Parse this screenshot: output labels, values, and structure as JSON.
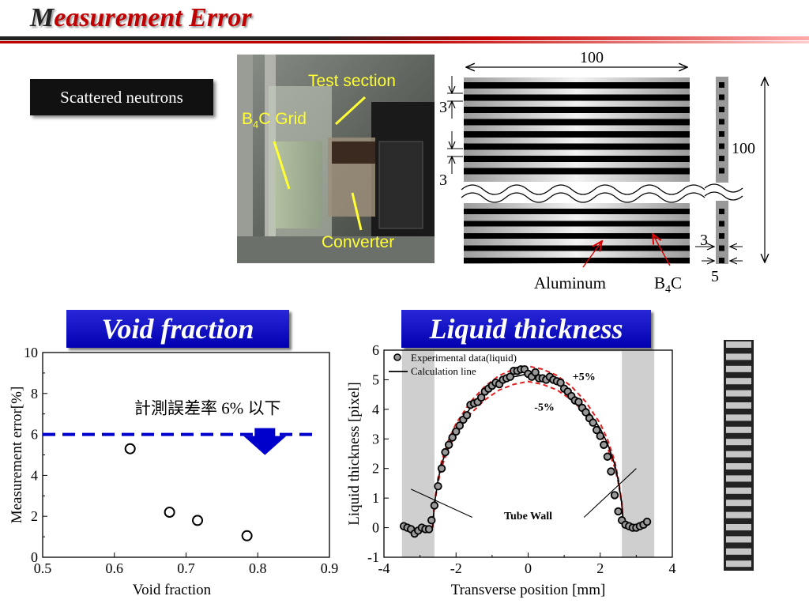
{
  "slide": {
    "title_first": "M",
    "title_rest": "easurement Error",
    "badge": "Scattered neutrons",
    "void_header": "Void fraction",
    "liquid_header": "Liquid thickness"
  },
  "photo": {
    "test_section": "Test section",
    "b4c_grid_b": "B",
    "b4c_grid_sub": "4",
    "b4c_grid_rest": "C Grid",
    "converter": "Converter"
  },
  "grid_diagram": {
    "top_width": "100",
    "pitch_1": "3",
    "pitch_2": "3",
    "height": "100",
    "side_3": "3",
    "side_5": "5",
    "aluminum": "Aluminum",
    "b4c_b": "B",
    "b4c_sub": "4",
    "b4c_c": "C"
  },
  "chart_data": [
    {
      "type": "scatter",
      "title": "Void fraction",
      "xlabel": "Void fraction",
      "ylabel": "Measurement error[%]",
      "xlim": [
        0.5,
        0.9
      ],
      "ylim": [
        0,
        10
      ],
      "xticks": [
        "0.5",
        "0.6",
        "0.7",
        "0.8",
        "0.9"
      ],
      "yticks": [
        "0",
        "2",
        "4",
        "6",
        "8",
        "10"
      ],
      "points": [
        {
          "x": 0.622,
          "y": 5.3
        },
        {
          "x": 0.677,
          "y": 2.2
        },
        {
          "x": 0.716,
          "y": 1.8
        },
        {
          "x": 0.785,
          "y": 1.05
        }
      ],
      "threshold": 6,
      "threshold_color": "#0000cc",
      "annotation": "計測誤差率 6% 以下"
    },
    {
      "type": "scatter",
      "title": "Liquid thickness",
      "xlabel": "Transverse position [mm]",
      "ylabel": "Liquid thickness [pixel]",
      "xlim": [
        -4,
        4
      ],
      "ylim": [
        -1,
        6
      ],
      "xticks": [
        "-4",
        "-2",
        "0",
        "2",
        "4"
      ],
      "yticks": [
        "-1",
        "0",
        "1",
        "2",
        "3",
        "4",
        "5",
        "6"
      ],
      "legend": [
        "Experimental data(liquid)",
        "Calculation line"
      ],
      "labels": {
        "plus": "+5%",
        "minus": "-5%",
        "wall": "Tube Wall"
      },
      "wall_regions": [
        [
          -3.5,
          -2.6
        ],
        [
          2.6,
          3.5
        ]
      ],
      "points": [
        {
          "x": -3.45,
          "y": 0.05
        },
        {
          "x": -3.35,
          "y": 0.0
        },
        {
          "x": -3.25,
          "y": -0.05
        },
        {
          "x": -3.15,
          "y": -0.2
        },
        {
          "x": -3.05,
          "y": -0.1
        },
        {
          "x": -2.95,
          "y": 0.0
        },
        {
          "x": -2.85,
          "y": -0.05
        },
        {
          "x": -2.75,
          "y": -0.05
        },
        {
          "x": -2.68,
          "y": 0.25
        },
        {
          "x": -2.6,
          "y": 0.75
        },
        {
          "x": -2.5,
          "y": 1.4
        },
        {
          "x": -2.4,
          "y": 2.0
        },
        {
          "x": -2.3,
          "y": 2.55
        },
        {
          "x": -2.2,
          "y": 2.8
        },
        {
          "x": -2.1,
          "y": 3.05
        },
        {
          "x": -2.0,
          "y": 3.25
        },
        {
          "x": -1.9,
          "y": 3.45
        },
        {
          "x": -1.8,
          "y": 3.65
        },
        {
          "x": -1.7,
          "y": 3.8
        },
        {
          "x": -1.6,
          "y": 4.15
        },
        {
          "x": -1.5,
          "y": 4.2
        },
        {
          "x": -1.4,
          "y": 4.25
        },
        {
          "x": -1.3,
          "y": 4.4
        },
        {
          "x": -1.2,
          "y": 4.6
        },
        {
          "x": -1.1,
          "y": 4.7
        },
        {
          "x": -1.0,
          "y": 4.8
        },
        {
          "x": -0.9,
          "y": 4.9
        },
        {
          "x": -0.8,
          "y": 4.85
        },
        {
          "x": -0.7,
          "y": 5.0
        },
        {
          "x": -0.6,
          "y": 5.05
        },
        {
          "x": -0.5,
          "y": 5.1
        },
        {
          "x": -0.4,
          "y": 5.3
        },
        {
          "x": -0.3,
          "y": 5.3
        },
        {
          "x": -0.2,
          "y": 5.35
        },
        {
          "x": -0.1,
          "y": 5.35
        },
        {
          "x": 0.0,
          "y": 5.2
        },
        {
          "x": 0.1,
          "y": 5.1
        },
        {
          "x": 0.2,
          "y": 5.25
        },
        {
          "x": 0.3,
          "y": 5.05
        },
        {
          "x": 0.4,
          "y": 5.05
        },
        {
          "x": 0.5,
          "y": 5.0
        },
        {
          "x": 0.6,
          "y": 5.1
        },
        {
          "x": 0.7,
          "y": 5.0
        },
        {
          "x": 0.8,
          "y": 4.95
        },
        {
          "x": 0.9,
          "y": 4.9
        },
        {
          "x": 1.0,
          "y": 4.7
        },
        {
          "x": 1.1,
          "y": 4.6
        },
        {
          "x": 1.2,
          "y": 4.45
        },
        {
          "x": 1.3,
          "y": 4.3
        },
        {
          "x": 1.4,
          "y": 4.25
        },
        {
          "x": 1.5,
          "y": 4.05
        },
        {
          "x": 1.6,
          "y": 3.9
        },
        {
          "x": 1.7,
          "y": 3.7
        },
        {
          "x": 1.8,
          "y": 3.55
        },
        {
          "x": 1.9,
          "y": 3.3
        },
        {
          "x": 2.0,
          "y": 3.1
        },
        {
          "x": 2.1,
          "y": 2.8
        },
        {
          "x": 2.2,
          "y": 2.4
        },
        {
          "x": 2.3,
          "y": 1.9
        },
        {
          "x": 2.4,
          "y": 1.1
        },
        {
          "x": 2.5,
          "y": 0.55
        },
        {
          "x": 2.6,
          "y": 0.25
        },
        {
          "x": 2.7,
          "y": 0.1
        },
        {
          "x": 2.8,
          "y": 0.05
        },
        {
          "x": 2.9,
          "y": 0.0
        },
        {
          "x": 3.0,
          "y": 0.0
        },
        {
          "x": 3.1,
          "y": 0.05
        },
        {
          "x": 3.2,
          "y": 0.1
        },
        {
          "x": 3.3,
          "y": 0.2
        }
      ],
      "calc_line": [
        {
          "x": -2.65,
          "y": 0.0
        },
        {
          "x": -2.6,
          "y": 0.8
        },
        {
          "x": -2.5,
          "y": 1.6
        },
        {
          "x": -2.4,
          "y": 2.15
        },
        {
          "x": -2.2,
          "y": 2.85
        },
        {
          "x": -2.0,
          "y": 3.35
        },
        {
          "x": -1.6,
          "y": 4.05
        },
        {
          "x": -1.2,
          "y": 4.55
        },
        {
          "x": -0.8,
          "y": 4.9
        },
        {
          "x": -0.4,
          "y": 5.1
        },
        {
          "x": 0.0,
          "y": 5.2
        },
        {
          "x": 0.4,
          "y": 5.1
        },
        {
          "x": 0.8,
          "y": 4.9
        },
        {
          "x": 1.2,
          "y": 4.55
        },
        {
          "x": 1.6,
          "y": 4.05
        },
        {
          "x": 2.0,
          "y": 3.35
        },
        {
          "x": 2.2,
          "y": 2.85
        },
        {
          "x": 2.4,
          "y": 2.15
        },
        {
          "x": 2.5,
          "y": 1.6
        },
        {
          "x": 2.6,
          "y": 0.8
        },
        {
          "x": 2.65,
          "y": 0.0
        }
      ],
      "band_scale": 0.05
    }
  ]
}
